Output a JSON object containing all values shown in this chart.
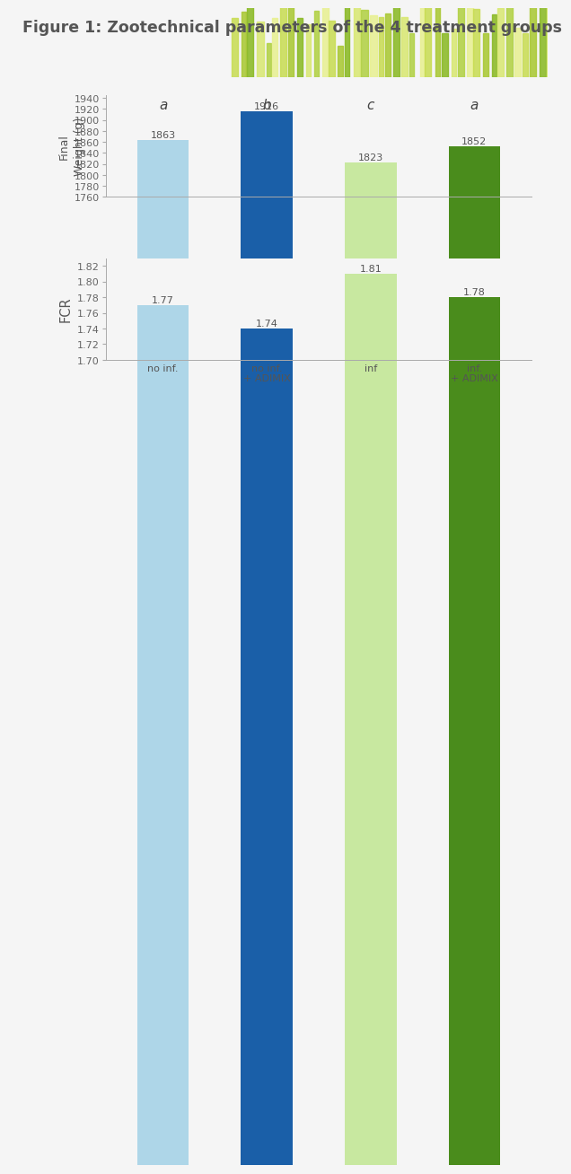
{
  "title": "Figure 1: Zootechnical parameters of the 4 treatment groups",
  "title_fontsize": 12.5,
  "title_color": "#555555",
  "background_color": "#f5f5f5",
  "plot_bg_color": "#f5f5f5",
  "categories": [
    "no inf.",
    "no inf.\n+ ADIMIX",
    "inf",
    "inf.\n+ ADIMIX"
  ],
  "weight_values": [
    1863,
    1916,
    1823,
    1852
  ],
  "fcr_values": [
    1.77,
    1.74,
    1.81,
    1.78
  ],
  "bar_colors": [
    "#aed6e8",
    "#1a5fa8",
    "#c8e8a0",
    "#4a8c1c"
  ],
  "weight_ylabel": "Final\nWeight (g)",
  "fcr_ylabel": "FCR",
  "weight_ylim": [
    1760,
    1945
  ],
  "weight_yticks": [
    1760,
    1780,
    1800,
    1820,
    1840,
    1860,
    1880,
    1900,
    1920,
    1940
  ],
  "fcr_ylim": [
    1.7,
    1.83
  ],
  "fcr_yticks": [
    1.7,
    1.72,
    1.74,
    1.76,
    1.78,
    1.8,
    1.82
  ],
  "significance_labels": [
    "a",
    "b",
    "c",
    "a"
  ],
  "significance_fontsize": 11,
  "bar_value_fontsize": 8,
  "axis_label_fontsize": 9,
  "tick_fontsize": 8,
  "bar_width": 0.5,
  "header_bg": "#ffffff",
  "green_stripe_color": "#6aaa3a",
  "blue_stripe_color": "#7ecfd4",
  "grass_colors": [
    "#c8dc50",
    "#a8c830",
    "#88b820",
    "#d8e870",
    "#b0d040",
    "#e8f090"
  ],
  "tick_color": "#aaaaaa",
  "spine_color": "#aaaaaa"
}
